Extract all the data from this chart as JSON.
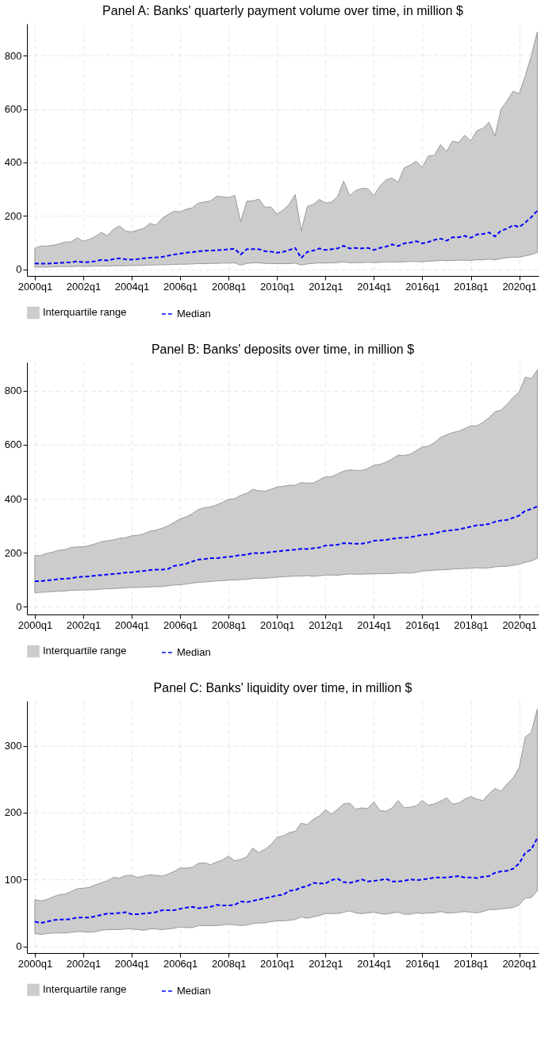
{
  "chart_data": [
    {
      "type": "line",
      "title": "Panel A: Banks' quarterly payment volume over time, in million $",
      "categories": [
        "2000q1",
        null,
        null,
        null,
        null,
        null,
        null,
        null,
        "2002q1",
        null,
        null,
        null,
        null,
        null,
        null,
        null,
        "2004q1",
        null,
        null,
        null,
        null,
        null,
        null,
        null,
        "2006q1",
        null,
        null,
        null,
        null,
        null,
        null,
        null,
        "2008q1",
        null,
        null,
        null,
        null,
        null,
        null,
        null,
        "2010q1",
        null,
        null,
        null,
        null,
        null,
        null,
        null,
        "2012q1",
        null,
        null,
        null,
        null,
        null,
        null,
        null,
        "2014q1",
        null,
        null,
        null,
        null,
        null,
        null,
        null,
        "2016q1",
        null,
        null,
        null,
        null,
        null,
        null,
        null,
        "2018q1",
        null,
        null,
        null,
        null,
        null,
        null,
        null,
        "2020q1",
        null,
        null,
        null
      ],
      "series": [
        {
          "name": "Median",
          "type": "line",
          "color": "#0000ff",
          "values": [
            22,
            21,
            21,
            22,
            24,
            25,
            26,
            30,
            26,
            27,
            30,
            35,
            33,
            38,
            41,
            37,
            36,
            38,
            41,
            43,
            44,
            46,
            51,
            55,
            58,
            62,
            64,
            67,
            69,
            70,
            71,
            73,
            75,
            77,
            55,
            75,
            75,
            75,
            68,
            66,
            62,
            65,
            72,
            80,
            42,
            65,
            70,
            78,
            72,
            75,
            78,
            88,
            78,
            80,
            78,
            80,
            72,
            80,
            85,
            93,
            87,
            97,
            100,
            105,
            97,
            102,
            110,
            115,
            107,
            120,
            120,
            125,
            118,
            130,
            132,
            138,
            123,
            145,
            152,
            165,
            158,
            175,
            195,
            220
          ],
          "upper": [
            78,
            87,
            87,
            90,
            95,
            102,
            103,
            118,
            105,
            112,
            123,
            138,
            126,
            150,
            162,
            143,
            140,
            147,
            153,
            172,
            165,
            190,
            205,
            218,
            215,
            225,
            230,
            248,
            252,
            256,
            273,
            272,
            268,
            277,
            178,
            255,
            256,
            263,
            233,
            233,
            207,
            222,
            243,
            280,
            143,
            235,
            243,
            262,
            248,
            252,
            272,
            330,
            276,
            295,
            303,
            302,
            276,
            312,
            335,
            342,
            326,
            380,
            390,
            405,
            382,
            425,
            427,
            467,
            442,
            480,
            475,
            502,
            481,
            519,
            528,
            551,
            500,
            600,
            632,
            667,
            658,
            725,
            800,
            890
          ],
          "lower": [
            8,
            8,
            8,
            9,
            10,
            10,
            10,
            11,
            11,
            11,
            12,
            12,
            12,
            13,
            13,
            13,
            14,
            14,
            15,
            16,
            16,
            17,
            17,
            18,
            19,
            19,
            20,
            21,
            21,
            22,
            22,
            23,
            23,
            24,
            15,
            22,
            24,
            24,
            22,
            21,
            21,
            21,
            21,
            23,
            16,
            20,
            22,
            24,
            23,
            24,
            25,
            28,
            24,
            25,
            25,
            26,
            25,
            26,
            27,
            28,
            27,
            28,
            29,
            29,
            28,
            30,
            31,
            34,
            32,
            33,
            34,
            34,
            33,
            36,
            35,
            38,
            35,
            40,
            43,
            45,
            45,
            50,
            55,
            63
          ]
        }
      ],
      "annotations": [
        "Interquartile range"
      ],
      "ylim": [
        -25,
        920
      ],
      "yticks": [
        0,
        200,
        400,
        600,
        800
      ],
      "grid": true,
      "legend": "bottom",
      "line_style": "dashed"
    },
    {
      "type": "line",
      "title": "Panel B: Banks' deposits over time, in million $",
      "categories": [
        "2000q1",
        null,
        null,
        null,
        null,
        null,
        null,
        null,
        "2002q1",
        null,
        null,
        null,
        null,
        null,
        null,
        null,
        "2004q1",
        null,
        null,
        null,
        null,
        null,
        null,
        null,
        "2006q1",
        null,
        null,
        null,
        null,
        null,
        null,
        null,
        "2008q1",
        null,
        null,
        null,
        null,
        null,
        null,
        null,
        "2010q1",
        null,
        null,
        null,
        null,
        null,
        null,
        null,
        "2012q1",
        null,
        null,
        null,
        null,
        null,
        null,
        null,
        "2014q1",
        null,
        null,
        null,
        null,
        null,
        null,
        null,
        "2016q1",
        null,
        null,
        null,
        null,
        null,
        null,
        null,
        "2018q1",
        null,
        null,
        null,
        null,
        null,
        null,
        null,
        "2020q1",
        null,
        null,
        null
      ],
      "series": [
        {
          "name": "Median",
          "type": "line",
          "color": "#0000ff",
          "values": [
            95,
            95,
            98,
            100,
            103,
            104,
            106,
            110,
            112,
            113,
            116,
            118,
            120,
            122,
            124,
            127,
            128,
            131,
            133,
            136,
            138,
            138,
            140,
            152,
            155,
            160,
            168,
            175,
            177,
            180,
            180,
            183,
            185,
            188,
            192,
            193,
            200,
            198,
            200,
            203,
            205,
            208,
            210,
            212,
            215,
            214,
            217,
            220,
            227,
            228,
            230,
            236,
            235,
            234,
            234,
            238,
            245,
            246,
            248,
            252,
            255,
            256,
            258,
            262,
            267,
            268,
            272,
            278,
            282,
            284,
            287,
            292,
            297,
            302,
            303,
            307,
            315,
            320,
            322,
            330,
            338,
            356,
            362,
            372
          ],
          "upper": [
            190,
            190,
            198,
            203,
            210,
            212,
            220,
            222,
            222,
            227,
            234,
            241,
            245,
            248,
            254,
            256,
            263,
            265,
            270,
            280,
            284,
            291,
            300,
            313,
            326,
            333,
            345,
            360,
            367,
            370,
            377,
            387,
            398,
            400,
            413,
            420,
            435,
            430,
            428,
            435,
            444,
            446,
            450,
            450,
            460,
            458,
            458,
            470,
            482,
            482,
            492,
            502,
            507,
            505,
            505,
            512,
            525,
            527,
            535,
            547,
            562,
            560,
            565,
            578,
            592,
            594,
            608,
            627,
            637,
            645,
            650,
            660,
            670,
            670,
            683,
            700,
            722,
            728,
            750,
            775,
            795,
            850,
            845,
            877
          ],
          "lower": [
            53,
            54,
            55,
            57,
            58,
            59,
            61,
            62,
            63,
            63,
            64,
            66,
            67,
            68,
            69,
            71,
            72,
            72,
            73,
            74,
            75,
            75,
            78,
            81,
            82,
            85,
            88,
            91,
            92,
            94,
            96,
            97,
            99,
            100,
            101,
            102,
            105,
            106,
            106,
            108,
            110,
            112,
            113,
            114,
            114,
            116,
            113,
            115,
            118,
            118,
            117,
            120,
            122,
            121,
            121,
            122,
            122,
            123,
            123,
            124,
            125,
            126,
            125,
            128,
            133,
            134,
            136,
            137,
            138,
            140,
            141,
            142,
            143,
            145,
            143,
            145,
            148,
            150,
            150,
            154,
            158,
            165,
            170,
            180
          ]
        }
      ],
      "annotations": [
        "Interquartile range"
      ],
      "ylim": [
        -28,
        905
      ],
      "yticks": [
        0,
        200,
        400,
        600,
        800
      ],
      "grid": true,
      "legend": "bottom",
      "line_style": "dashed"
    },
    {
      "type": "line",
      "title": "Panel C: Banks' liquidity over time, in million $",
      "categories": [
        "2000q1",
        null,
        null,
        null,
        null,
        null,
        null,
        null,
        "2002q1",
        null,
        null,
        null,
        null,
        null,
        null,
        null,
        "2004q1",
        null,
        null,
        null,
        null,
        null,
        null,
        null,
        "2006q1",
        null,
        null,
        null,
        null,
        null,
        null,
        null,
        "2008q1",
        null,
        null,
        null,
        null,
        null,
        null,
        null,
        "2010q1",
        null,
        null,
        null,
        null,
        null,
        null,
        null,
        "2012q1",
        null,
        null,
        null,
        null,
        null,
        null,
        null,
        "2014q1",
        null,
        null,
        null,
        null,
        null,
        null,
        null,
        "2016q1",
        null,
        null,
        null,
        null,
        null,
        null,
        null,
        "2018q1",
        null,
        null,
        null,
        null,
        null,
        null,
        null,
        "2020q1",
        null,
        null,
        null
      ],
      "series": [
        {
          "name": "Median",
          "type": "line",
          "color": "#0000ff",
          "values": [
            37,
            35,
            37,
            39,
            40,
            40,
            41,
            43,
            43,
            43,
            45,
            47,
            49,
            49,
            50,
            51,
            48,
            48,
            49,
            50,
            51,
            54,
            54,
            54,
            56,
            58,
            59,
            57,
            58,
            59,
            62,
            61,
            61,
            62,
            67,
            66,
            68,
            70,
            72,
            74,
            76,
            77,
            83,
            84,
            88,
            90,
            95,
            94,
            94,
            99,
            101,
            96,
            95,
            97,
            100,
            97,
            98,
            99,
            101,
            97,
            97,
            98,
            100,
            99,
            100,
            101,
            103,
            103,
            103,
            104,
            105,
            103,
            103,
            102,
            104,
            105,
            110,
            112,
            113,
            116,
            124,
            140,
            145,
            162
          ],
          "upper": [
            70,
            68,
            70,
            74,
            77,
            78,
            82,
            86,
            87,
            88,
            92,
            95,
            98,
            103,
            102,
            106,
            106,
            103,
            105,
            107,
            106,
            105,
            108,
            112,
            117,
            117,
            118,
            124,
            125,
            122,
            126,
            129,
            135,
            128,
            130,
            134,
            147,
            140,
            145,
            152,
            163,
            165,
            170,
            172,
            184,
            182,
            190,
            195,
            204,
            198,
            205,
            213,
            214,
            205,
            207,
            206,
            216,
            203,
            202,
            207,
            218,
            207,
            208,
            210,
            218,
            211,
            213,
            217,
            222,
            213,
            214,
            220,
            224,
            220,
            218,
            228,
            236,
            232,
            243,
            252,
            267,
            313,
            320,
            355
          ],
          "lower": [
            19,
            18,
            19,
            20,
            20,
            20,
            21,
            22,
            22,
            21,
            22,
            24,
            25,
            25,
            25,
            26,
            26,
            25,
            24,
            26,
            26,
            25,
            26,
            27,
            29,
            28,
            28,
            31,
            31,
            31,
            31,
            32,
            33,
            32,
            31,
            32,
            34,
            35,
            35,
            37,
            38,
            38,
            39,
            40,
            44,
            42,
            44,
            46,
            49,
            49,
            49,
            51,
            53,
            50,
            49,
            50,
            51,
            49,
            48,
            50,
            51,
            48,
            48,
            50,
            49,
            50,
            50,
            52,
            50,
            50,
            51,
            52,
            51,
            50,
            52,
            55,
            55,
            56,
            57,
            58,
            62,
            72,
            73,
            83
          ]
        }
      ],
      "annotations": [
        "Interquartile range"
      ],
      "ylim": [
        -10,
        367
      ],
      "yticks": [
        0,
        100,
        200,
        300
      ],
      "grid": true,
      "legend": "bottom",
      "line_style": "dashed"
    }
  ]
}
